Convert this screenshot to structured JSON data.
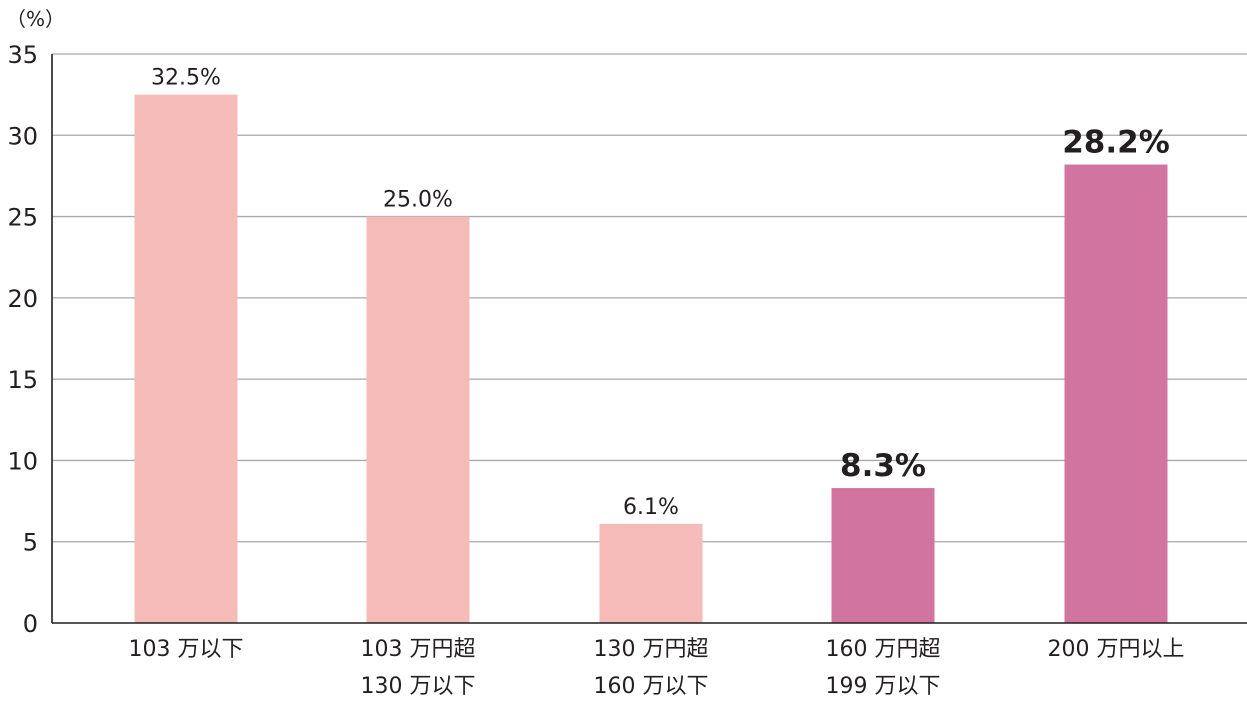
{
  "chart_data": {
    "type": "bar",
    "ylabel": "（%）",
    "ylim": [
      0,
      35
    ],
    "yticks": [
      0,
      5,
      10,
      15,
      20,
      25,
      30,
      35
    ],
    "grid": true,
    "categories": [
      [
        "103 万以下"
      ],
      [
        "103 万円超",
        "130 万以下"
      ],
      [
        "130 万円超",
        "160 万以下"
      ],
      [
        "160 万円超",
        "199 万以下"
      ],
      [
        "200 万円以上"
      ]
    ],
    "values": [
      32.5,
      25.0,
      6.1,
      8.3,
      28.2
    ],
    "value_labels": [
      "32.5%",
      "25.0%",
      "6.1%",
      "8.3%",
      "28.2%"
    ],
    "highlighted": [
      false,
      false,
      false,
      true,
      true
    ],
    "colors": {
      "bar": "#f5bbb8",
      "bar_highlight": "#d175a0",
      "label": "#231f20",
      "label_highlight": "#b2233f",
      "grid": "#a7a9ac",
      "axis": "#231f20"
    }
  }
}
